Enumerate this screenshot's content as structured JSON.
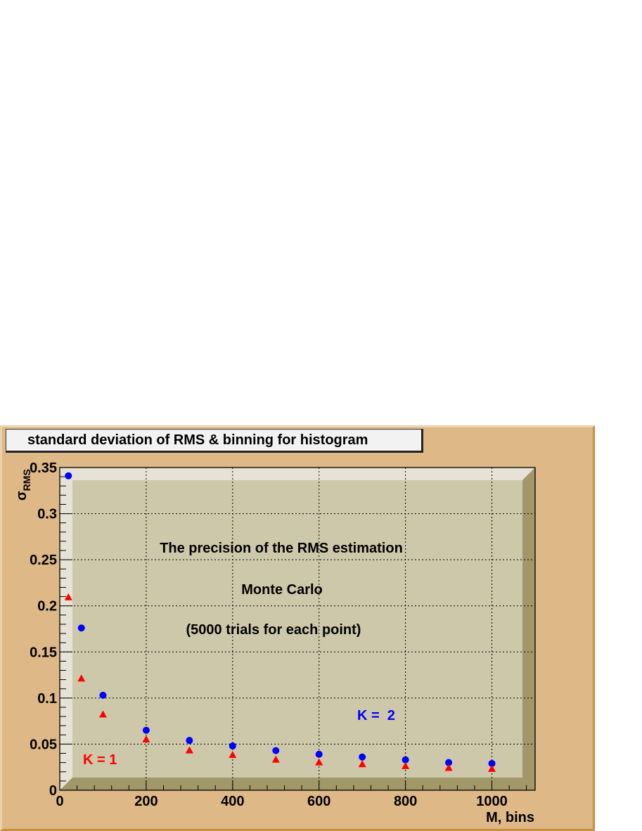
{
  "title": "standard deviation of RMS & binning for histogram",
  "colors": {
    "canvas": "#deb887",
    "plot_floor": "#cdc8aa",
    "plot_wall_light": "#e6e3d6",
    "plot_wall_dark": "#a29768",
    "series_k1": "#ff0000",
    "series_k2": "#0000ff"
  },
  "chart_data": {
    "type": "scatter",
    "title": "standard deviation of RMS & binning for histogram",
    "xlabel": "M, bins",
    "ylabel": "σ",
    "ylabel_subscript": "RMS",
    "xlim": [
      0,
      1100
    ],
    "ylim": [
      0,
      0.35
    ],
    "x_ticks": [
      0,
      200,
      400,
      600,
      800,
      1000
    ],
    "x_tick_labels": [
      "0",
      "200",
      "400",
      "600",
      "800",
      "1000"
    ],
    "y_ticks": [
      0,
      0.05,
      0.1,
      0.15,
      0.2,
      0.25,
      0.3,
      0.35
    ],
    "y_tick_labels": [
      "0",
      "0.05",
      "0.1",
      "0.15",
      "0.2",
      "0.25",
      "0.3",
      "0.35"
    ],
    "grid": true,
    "series": [
      {
        "name": "K =  2",
        "marker": "circle",
        "color": "#0000ff",
        "x": [
          20,
          50,
          100,
          200,
          300,
          400,
          500,
          600,
          700,
          800,
          900,
          1000
        ],
        "y": [
          0.341,
          0.176,
          0.103,
          0.065,
          0.054,
          0.048,
          0.043,
          0.039,
          0.036,
          0.033,
          0.03,
          0.029
        ]
      },
      {
        "name": "K = 1",
        "marker": "triangle",
        "color": "#ff0000",
        "x": [
          20,
          50,
          100,
          200,
          300,
          400,
          500,
          600,
          700,
          800,
          900,
          1000
        ],
        "y": [
          0.209,
          0.121,
          0.082,
          0.055,
          0.043,
          0.038,
          0.033,
          0.03,
          0.028,
          0.026,
          0.024,
          0.023
        ]
      }
    ],
    "annotations": [
      "The precision of the RMS estimation",
      "Monte Carlo",
      "(5000 trials for each point)"
    ]
  }
}
